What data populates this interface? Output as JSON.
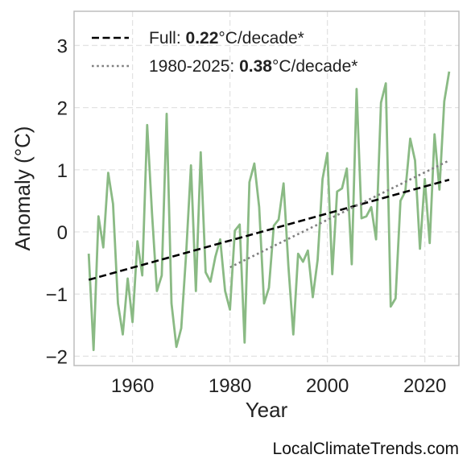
{
  "chart_data": {
    "type": "line",
    "xlabel": "Year",
    "ylabel": "Anomaly (°C)",
    "xlim": [
      1948,
      2027
    ],
    "ylim": [
      -2.15,
      3.55
    ],
    "xticks": [
      1960,
      1980,
      2000,
      2020
    ],
    "yticks": [
      -2,
      -1,
      0,
      1,
      2,
      3
    ],
    "ytick_labels": [
      "−2",
      "−1",
      "0",
      "1",
      "2",
      "3"
    ],
    "grid": true,
    "legend_position": "top-left",
    "series": [
      {
        "color": "#8aba84",
        "x": [
          1951,
          1952,
          1953,
          1954,
          1955,
          1956,
          1957,
          1958,
          1959,
          1960,
          1961,
          1962,
          1963,
          1964,
          1965,
          1966,
          1967,
          1968,
          1969,
          1970,
          1971,
          1972,
          1973,
          1974,
          1975,
          1976,
          1977,
          1978,
          1979,
          1980,
          1981,
          1982,
          1983,
          1984,
          1985,
          1986,
          1987,
          1988,
          1989,
          1990,
          1991,
          1992,
          1993,
          1994,
          1995,
          1996,
          1997,
          1998,
          1999,
          2000,
          2001,
          2002,
          2003,
          2004,
          2005,
          2006,
          2007,
          2008,
          2009,
          2010,
          2011,
          2012,
          2013,
          2014,
          2015,
          2016,
          2017,
          2018,
          2019,
          2020,
          2021,
          2022,
          2023,
          2024,
          2025
        ],
        "values": [
          -0.35,
          -1.9,
          0.25,
          -0.25,
          0.95,
          0.45,
          -1.15,
          -1.65,
          -0.75,
          -1.45,
          -0.15,
          -0.7,
          1.72,
          0.3,
          -0.95,
          -0.7,
          1.9,
          -1.15,
          -1.85,
          -1.55,
          -0.35,
          1.07,
          -0.95,
          1.28,
          -0.65,
          -0.8,
          -0.4,
          -0.12,
          -0.95,
          -1.25,
          0.02,
          0.12,
          -1.78,
          0.8,
          1.1,
          0.4,
          -1.15,
          -0.9,
          0.1,
          0.2,
          0.78,
          -0.55,
          -1.65,
          -0.35,
          -0.48,
          -0.3,
          -1.05,
          -0.45,
          0.85,
          1.27,
          -0.68,
          0.65,
          0.7,
          1.02,
          -0.52,
          2.3,
          0.22,
          0.25,
          0.4,
          -0.12,
          2.08,
          2.39,
          -1.2,
          -1.07,
          0.5,
          0.65,
          1.5,
          1.15,
          -0.27,
          0.85,
          -0.18,
          1.57,
          0.68,
          2.1,
          2.58
        ]
      },
      {
        "name": "Full",
        "style": "dashed",
        "color": "#000000",
        "x": [
          1951,
          2025
        ],
        "values": [
          -0.77,
          0.84
        ]
      },
      {
        "name": "1980-2025",
        "style": "dotted",
        "color": "#808080",
        "x": [
          1980,
          2025
        ],
        "values": [
          -0.57,
          1.15
        ]
      }
    ],
    "legend": [
      {
        "prefix": "Full: ",
        "value": "0.22",
        "suffix": "°C/decade*",
        "style": "dashed",
        "color": "#000000"
      },
      {
        "prefix": "1980-2025: ",
        "value": "0.38",
        "suffix": "°C/decade*",
        "style": "dotted",
        "color": "#808080"
      }
    ]
  },
  "watermark": "LocalClimateTrends.com"
}
